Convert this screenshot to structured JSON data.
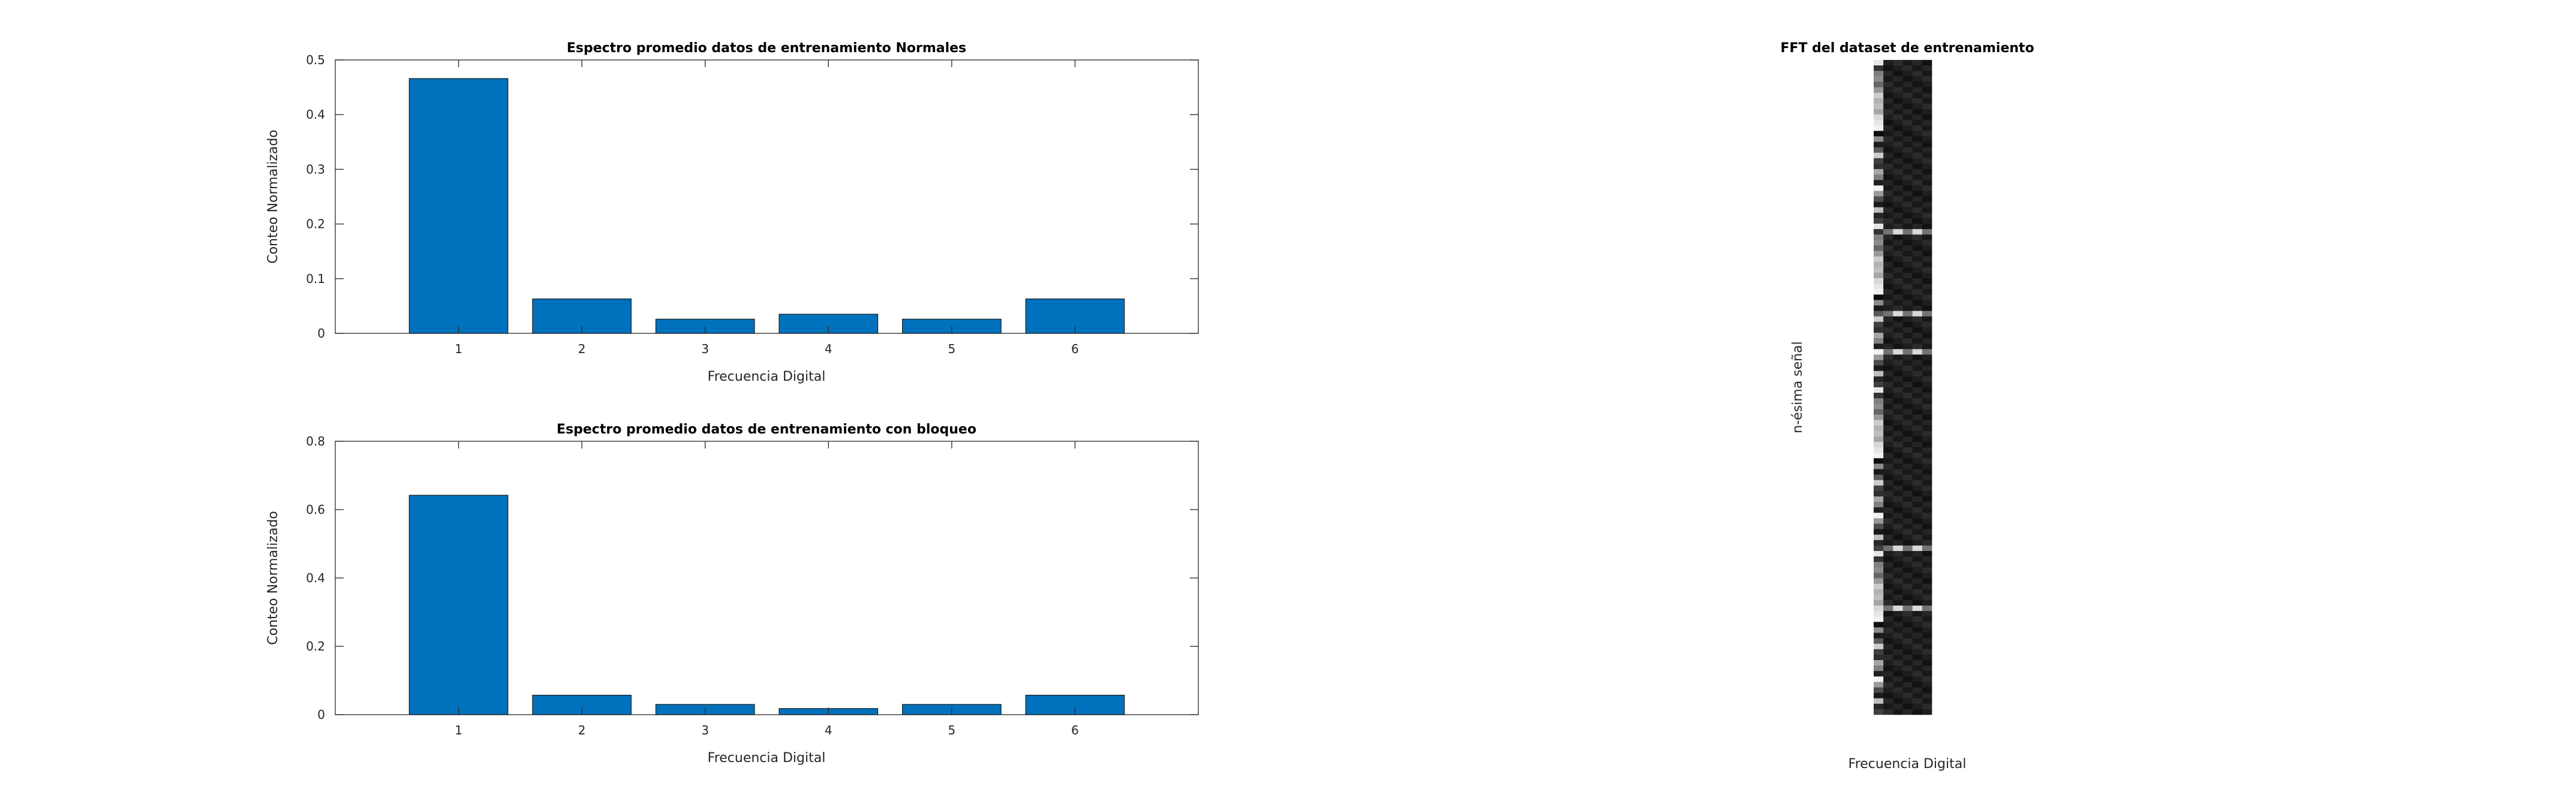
{
  "chart_data": [
    {
      "type": "bar",
      "title": "Espectro promedio datos de entrenamiento Normales",
      "xlabel": "Frecuencia Digital",
      "ylabel": "Conteo Normalizado",
      "categories": [
        "1",
        "2",
        "3",
        "4",
        "5",
        "6"
      ],
      "values": [
        0.466,
        0.063,
        0.026,
        0.035,
        0.026,
        0.063
      ],
      "ylim": [
        0,
        0.5
      ],
      "yticks": [
        0,
        0.1,
        0.2,
        0.3,
        0.4,
        0.5
      ],
      "ytick_labels": [
        "0",
        "0.1",
        "0.2",
        "0.3",
        "0.4",
        "0.5"
      ],
      "color": "#0072BD",
      "grid": false
    },
    {
      "type": "bar",
      "title": "Espectro promedio datos de entrenamiento con bloqueo",
      "xlabel": "Frecuencia Digital",
      "ylabel": "Conteo Normalizado",
      "categories": [
        "1",
        "2",
        "3",
        "4",
        "5",
        "6"
      ],
      "values": [
        0.642,
        0.057,
        0.03,
        0.018,
        0.03,
        0.057
      ],
      "ylim": [
        0,
        0.8
      ],
      "yticks": [
        0,
        0.2,
        0.4,
        0.6,
        0.8
      ],
      "ytick_labels": [
        "0",
        "0.2",
        "0.4",
        "0.6",
        "0.8"
      ],
      "color": "#0072BD",
      "grid": false
    },
    {
      "type": "heatmap",
      "title": "FFT del dataset de entrenamiento",
      "xlabel": "Frecuencia Digital",
      "ylabel": "n-ésima señal",
      "colormap": "gray",
      "columns": 6,
      "rows": 120,
      "first_column_profile": [
        0.9,
        0.12,
        0.55,
        0.3,
        0.8,
        0.15,
        0.65,
        0.2,
        0.95,
        0.4,
        0.1,
        0.7,
        0.25,
        0.85,
        0.5,
        0.05,
        0.6,
        0.35,
        0.75,
        0.18
      ],
      "other_column_level": 0.07,
      "highlight_rows": [
        31,
        46,
        53,
        89,
        100
      ]
    }
  ]
}
